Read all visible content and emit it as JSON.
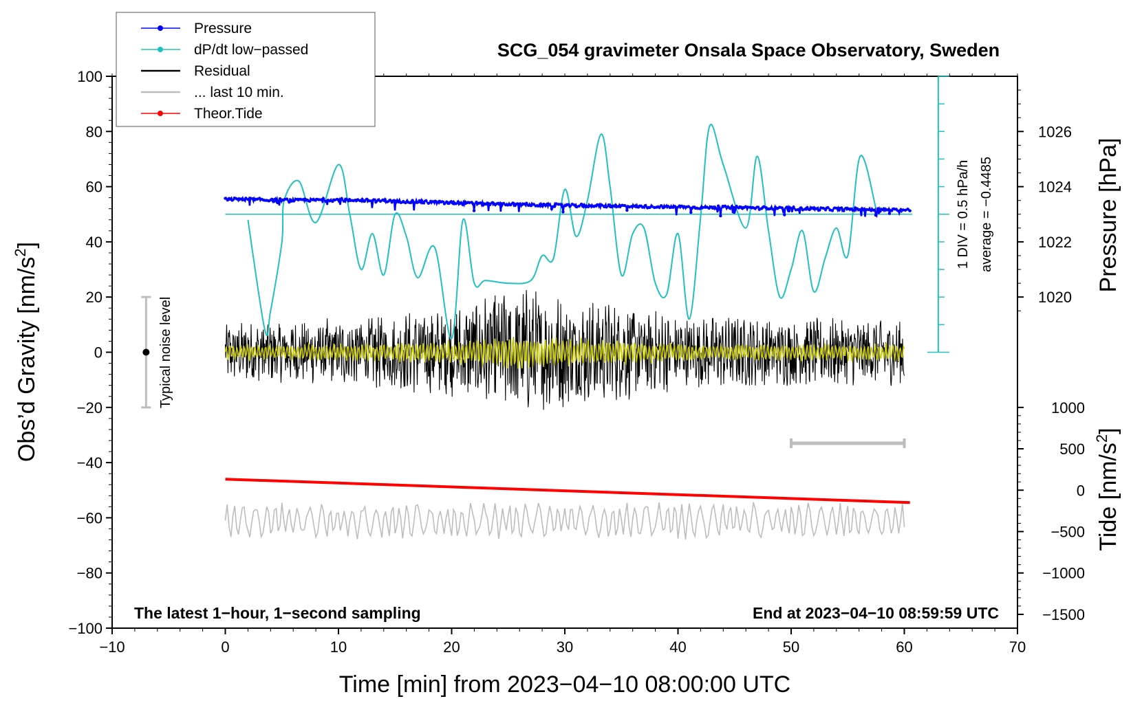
{
  "chart_data": {
    "type": "line",
    "title": "SCG_054 gravimeter Onsala Space Observatory, Sweden",
    "xlabel": "Time [min] from 2023−04−10 08:00:00 UTC",
    "xlim": [
      -10,
      70
    ],
    "x_ticks": [
      -10,
      0,
      10,
      20,
      30,
      40,
      50,
      60,
      70
    ],
    "x_tick_labels": [
      "−10",
      "0",
      "10",
      "20",
      "30",
      "40",
      "50",
      "60",
      "70"
    ],
    "left_axis": {
      "label_main": "Obs’d Gravity [nm/s",
      "label_sup": "2",
      "label_end": "]",
      "ylim": [
        -100,
        100
      ],
      "ticks": [
        -100,
        -80,
        -60,
        -40,
        -20,
        0,
        20,
        40,
        60,
        80,
        100
      ],
      "tick_labels": [
        "−100",
        "−80",
        "−60",
        "−40",
        "−20",
        "0",
        "20",
        "40",
        "60",
        "80",
        "100"
      ]
    },
    "pressure_axis": {
      "label": "Pressure [hPa]",
      "ticks": [
        1020,
        1022,
        1024,
        1026
      ],
      "tick_labels": [
        "1020",
        "1022",
        "1024",
        "1026"
      ],
      "gravity_at_1020": 20,
      "gravity_per_hpa": 10
    },
    "tide_axis": {
      "label_main": "Tide [nm/s",
      "label_sup": "2",
      "label_end": "]",
      "ticks": [
        1000,
        500,
        0,
        -500,
        -1000,
        -1500
      ],
      "tick_labels": [
        "1000",
        "500",
        "0",
        "−500",
        "−1000",
        "−1500"
      ],
      "gravity_at_0": -50,
      "gravity_per_nm": 0.03
    },
    "dpdt_scale": {
      "label_div": "1 DIV = 0.5 hPa/h",
      "label_avg": "average = −0.4485",
      "x": 63,
      "baseline_gravity": 50,
      "bottom_gravity": 0,
      "top_gravity": 100,
      "div_gravity": 10
    },
    "noise_bar": {
      "label": "Typical noise level",
      "x": -7,
      "low": -20,
      "high": 20,
      "center": 0
    },
    "ten_min_bar": {
      "x_start": 50,
      "x_end": 60,
      "y": -33
    },
    "series": [
      {
        "name": "Pressure",
        "color": "#0000ff",
        "style": "points",
        "x": [
          0,
          5,
          10,
          15,
          20,
          25,
          30,
          35,
          40,
          45,
          50,
          55,
          60
        ],
        "values": [
          55.5,
          55.1,
          55.2,
          54.8,
          54.1,
          53.6,
          53.2,
          53.0,
          52.6,
          52.4,
          52.1,
          51.8,
          51.5
        ]
      },
      {
        "name": "dP/dt low−passed",
        "color": "#20c0c0",
        "style": "line",
        "x": [
          2,
          3.5,
          4,
          5,
          5.2,
          6.5,
          8,
          10,
          11,
          12,
          13,
          14,
          15,
          16,
          17,
          18.5,
          20,
          21,
          22,
          23,
          25,
          27,
          28,
          29,
          30,
          31,
          32,
          33.2,
          34,
          35,
          36,
          37,
          38,
          39,
          40,
          41,
          42,
          42.8,
          44,
          46,
          47,
          48,
          49,
          50,
          51,
          52,
          53,
          54,
          55,
          56.1,
          57.5
        ],
        "values": [
          48,
          8,
          15,
          40,
          55,
          62,
          47,
          68,
          50,
          30,
          43,
          28,
          50,
          42,
          27,
          38,
          5,
          48,
          25,
          26,
          25,
          26,
          35,
          34,
          59,
          42,
          55,
          79,
          60,
          28,
          43,
          45,
          25,
          21,
          43,
          12,
          49,
          82,
          68,
          45,
          71,
          44,
          20,
          30,
          44,
          22,
          34,
          45,
          35,
          71,
          52
        ]
      },
      {
        "name": "Residual",
        "color": "#000000",
        "style": "noise",
        "x_range": [
          0,
          60
        ],
        "envelope": [
          [
            0,
            8
          ],
          [
            10,
            9
          ],
          [
            20,
            12
          ],
          [
            25,
            18
          ],
          [
            30,
            15
          ],
          [
            35,
            13
          ],
          [
            40,
            10
          ],
          [
            50,
            9
          ],
          [
            60,
            9
          ]
        ]
      },
      {
        "name": "... last 10 min.",
        "color": "#bdbdbd",
        "style": "noise",
        "x_range": [
          0,
          60
        ],
        "offset": -61,
        "amplitude": 7
      },
      {
        "name": "Theor.Tide",
        "color": "#ff0000",
        "style": "line",
        "x": [
          0,
          60.5
        ],
        "values": [
          -46,
          -54.5
        ]
      }
    ],
    "smoothed_residual": {
      "color": "#c8c800"
    },
    "notes": {
      "bottom_left": "The latest 1−hour, 1−second sampling",
      "bottom_right": "End at 2023−04−10 08:59:59 UTC"
    }
  }
}
